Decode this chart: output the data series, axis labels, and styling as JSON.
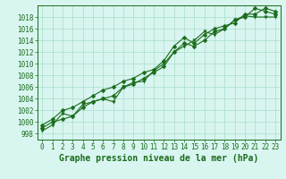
{
  "title": "Graphe pression niveau de la mer (hPa)",
  "x_hours": [
    0,
    1,
    2,
    3,
    4,
    5,
    6,
    7,
    8,
    9,
    10,
    11,
    12,
    13,
    14,
    15,
    16,
    17,
    18,
    19,
    20,
    21,
    22,
    23
  ],
  "series": [
    [
      999.0,
      1000.0,
      1000.5,
      1001.0,
      1002.5,
      1003.5,
      1004.0,
      1004.5,
      1006.0,
      1006.5,
      1007.5,
      1008.5,
      1009.5,
      1012.0,
      1013.5,
      1013.0,
      1014.0,
      1015.5,
      1016.0,
      1017.5,
      1018.0,
      1019.5,
      1019.0,
      1018.5
    ],
    [
      998.5,
      999.5,
      1001.5,
      1001.0,
      1003.0,
      1003.5,
      1004.0,
      1003.5,
      1006.0,
      1006.8,
      1007.0,
      1008.8,
      1010.0,
      1012.0,
      1013.0,
      1014.0,
      1015.5,
      1015.0,
      1016.0,
      1017.5,
      1018.2,
      1018.0,
      1018.0,
      1018.0
    ],
    [
      999.5,
      1000.5,
      1002.0,
      1002.5,
      1003.5,
      1004.5,
      1005.5,
      1006.0,
      1007.0,
      1007.5,
      1008.5,
      1009.0,
      1010.5,
      1013.0,
      1014.5,
      1013.5,
      1015.0,
      1016.0,
      1016.5,
      1017.0,
      1018.5,
      1018.5,
      1019.5,
      1019.0
    ]
  ],
  "line_color": "#1a6b1a",
  "background_color": "#d8f5f0",
  "grid_color": "#aaddcc",
  "ylim": [
    997,
    1020
  ],
  "yticks": [
    998,
    1000,
    1002,
    1004,
    1006,
    1008,
    1010,
    1012,
    1014,
    1016,
    1018
  ],
  "xlim": [
    -0.5,
    23.5
  ],
  "xticks": [
    0,
    1,
    2,
    3,
    4,
    5,
    6,
    7,
    8,
    9,
    10,
    11,
    12,
    13,
    14,
    15,
    16,
    17,
    18,
    19,
    20,
    21,
    22,
    23
  ],
  "tick_fontsize": 5.5,
  "title_fontsize": 7,
  "linewidth": 0.8,
  "markersize": 2.5
}
